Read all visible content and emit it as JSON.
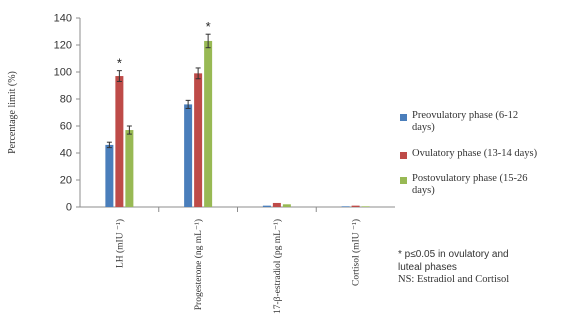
{
  "chart_data": {
    "type": "bar",
    "title": "",
    "ylabel": "Percentage limit (%)",
    "xlabel": "",
    "ylim": [
      0,
      140
    ],
    "yticks": [
      "0",
      "20",
      "40",
      "60",
      "80",
      "100",
      "120",
      "140"
    ],
    "categories": [
      "LH (mIU ⁻¹)",
      "Progesterone (ng mL⁻¹)",
      "17-β-estradiol (pg mL⁻¹)",
      "Cortisol (mIU ⁻¹)"
    ],
    "series": [
      {
        "name": "Preovulatory phase (6-12 days)",
        "color": "#4a7ebb",
        "values": [
          46,
          76,
          1,
          0.5
        ],
        "errors": [
          2,
          3,
          0,
          0
        ]
      },
      {
        "name": "Ovulatory phase (13-14 days)",
        "color": "#be4b48",
        "values": [
          97,
          99,
          3,
          1
        ],
        "errors": [
          4,
          4,
          0,
          0
        ]
      },
      {
        "name": "Postovulatory phase (15-26 days)",
        "color": "#98b954",
        "values": [
          57,
          123,
          2,
          0.5
        ],
        "errors": [
          3,
          5,
          0,
          0
        ]
      }
    ],
    "annotations": [
      {
        "text": "*",
        "category": 0,
        "series": 1
      },
      {
        "text": "*",
        "category": 1,
        "series": 2
      }
    ],
    "grid": false,
    "legend_position": "right"
  },
  "legend": {
    "items": [
      {
        "line1": "Preovulatory phase (6-12",
        "line2": "days)",
        "color": "#4a7ebb"
      },
      {
        "line1": "Ovulatory phase (13-14 days)",
        "line2": "",
        "color": "#be4b48"
      },
      {
        "line1": "Postovulatory phase (15-26",
        "line2": "days)",
        "color": "#98b954"
      }
    ]
  },
  "notes": {
    "significance_line1": "* p≤0.05 in ovulatory and",
    "significance_line2": "luteal phases",
    "ns_line": "NS: Estradiol and Cortisol"
  }
}
